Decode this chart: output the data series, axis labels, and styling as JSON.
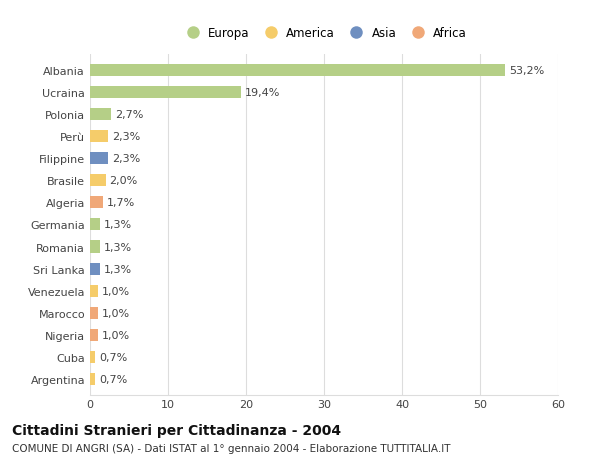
{
  "categories": [
    "Albania",
    "Ucraina",
    "Polonia",
    "Perù",
    "Filippine",
    "Brasile",
    "Algeria",
    "Germania",
    "Romania",
    "Sri Lanka",
    "Venezuela",
    "Marocco",
    "Nigeria",
    "Cuba",
    "Argentina"
  ],
  "values": [
    53.2,
    19.4,
    2.7,
    2.3,
    2.3,
    2.0,
    1.7,
    1.3,
    1.3,
    1.3,
    1.0,
    1.0,
    1.0,
    0.7,
    0.7
  ],
  "labels": [
    "53,2%",
    "19,4%",
    "2,7%",
    "2,3%",
    "2,3%",
    "2,0%",
    "1,7%",
    "1,3%",
    "1,3%",
    "1,3%",
    "1,0%",
    "1,0%",
    "1,0%",
    "0,7%",
    "0,7%"
  ],
  "colors": [
    "#b5cf87",
    "#b5cf87",
    "#b5cf87",
    "#f5cc6a",
    "#6f8fc0",
    "#f5cc6a",
    "#f0a878",
    "#b5cf87",
    "#b5cf87",
    "#6f8fc0",
    "#f5cc6a",
    "#f0a878",
    "#f0a878",
    "#f5cc6a",
    "#f5cc6a"
  ],
  "continent_colors": {
    "Europa": "#b5cf87",
    "America": "#f5cc6a",
    "Asia": "#6f8fc0",
    "Africa": "#f0a878"
  },
  "xlim": [
    0,
    60
  ],
  "xticks": [
    0,
    10,
    20,
    30,
    40,
    50,
    60
  ],
  "title": "Cittadini Stranieri per Cittadinanza - 2004",
  "subtitle": "COMUNE DI ANGRI (SA) - Dati ISTAT al 1° gennaio 2004 - Elaborazione TUTTITALIA.IT",
  "background_color": "#ffffff",
  "grid_color": "#dddddd",
  "bar_height": 0.55,
  "title_fontsize": 10,
  "subtitle_fontsize": 7.5,
  "label_fontsize": 8,
  "tick_fontsize": 8,
  "legend_fontsize": 8.5
}
